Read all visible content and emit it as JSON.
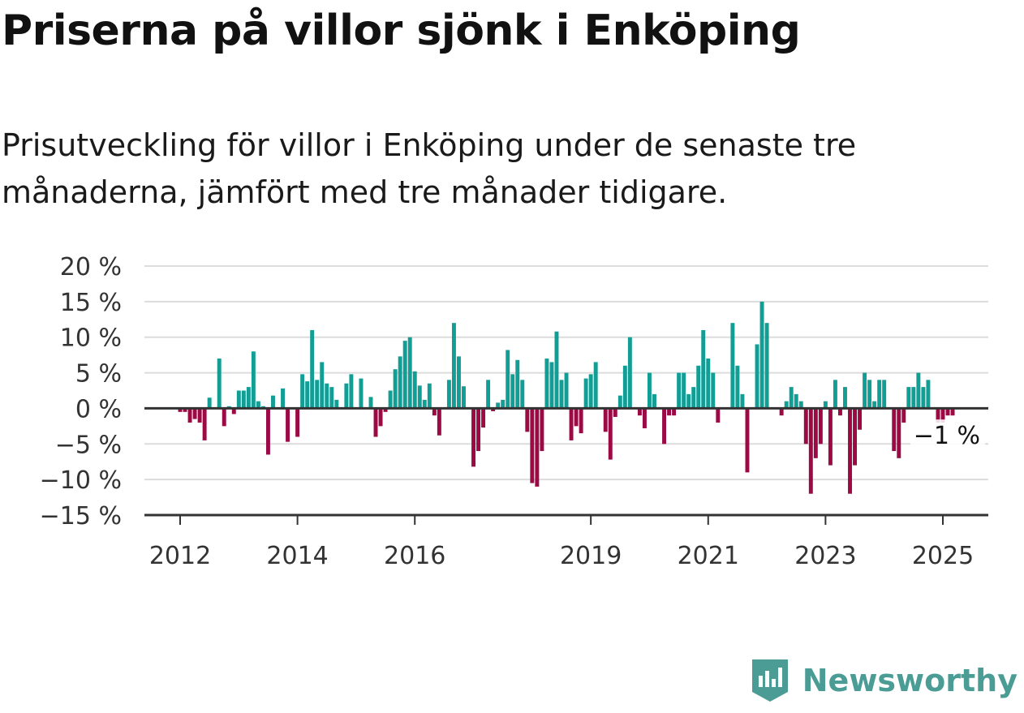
{
  "title": "Priserna på villor sjönk i Enköping",
  "subtitle": "Prisutveckling för villor i Enköping under de senaste tre månaderna, jämfört med tre månader tidigare.",
  "brand": {
    "name": "Newsworthy",
    "icon": "newsworthy-logo-icon",
    "color": "#4a9c95"
  },
  "colors": {
    "positive": "#139e95",
    "negative": "#9c0a45",
    "grid": "#dcdcdc",
    "axis": "#333333"
  },
  "chart_data": {
    "type": "bar",
    "x_start": "2012-01",
    "x_end": "2025-04",
    "ylim": [
      -15,
      20
    ],
    "yticks": [
      20,
      15,
      10,
      5,
      0,
      -5,
      -10,
      -15
    ],
    "ytick_labels": [
      "20 %",
      "15 %",
      "10 %",
      "5 %",
      "0 %",
      "−5 %",
      "−10 %",
      "−15 %"
    ],
    "xticks": [
      "2012",
      "2014",
      "2016",
      "2019",
      "2021",
      "2023",
      "2025"
    ],
    "end_label": "−1 %",
    "grid": true,
    "unit": "%",
    "values": [
      -0.5,
      -0.5,
      -2,
      -1.5,
      -2,
      -4.5,
      1.5,
      0,
      7,
      -2.5,
      0.3,
      -0.8,
      2.5,
      2.5,
      3,
      8,
      1,
      0.3,
      -6.5,
      1.8,
      0,
      2.8,
      -4.7,
      0,
      -4,
      4.8,
      3.8,
      11,
      4,
      6.5,
      3.5,
      3,
      1.2,
      0,
      3.5,
      4.8,
      0,
      4.2,
      0,
      1.6,
      -4,
      -2.5,
      -0.5,
      2.5,
      5.5,
      7.3,
      9.5,
      10,
      5.2,
      3.2,
      1.2,
      3.5,
      -1,
      -3.8,
      0,
      4,
      12,
      7.3,
      3.1,
      0,
      -8.2,
      -6,
      -2.7,
      4,
      -0.4,
      0.8,
      1.2,
      8.2,
      4.8,
      6.8,
      4,
      -3.3,
      -10.5,
      -11,
      -6,
      7,
      6.5,
      10.8,
      4,
      5,
      -4.5,
      -2.5,
      -3.5,
      4.2,
      4.8,
      6.5,
      0,
      -3.3,
      -7.2,
      -1.2,
      1.8,
      6,
      10,
      0,
      -1,
      -2.8,
      5,
      2,
      0,
      -5,
      -1,
      -1,
      5,
      5,
      2,
      3,
      6,
      11,
      7,
      5,
      -2,
      0,
      0,
      12,
      6,
      2,
      -9,
      0,
      9,
      15,
      12,
      0,
      0,
      -1,
      1,
      3,
      2,
      1,
      -5,
      -12,
      -7,
      -5,
      1,
      -8,
      4,
      -1,
      3,
      -12,
      -8,
      -3,
      5,
      4,
      1,
      4,
      4,
      0,
      -6,
      -7,
      -2,
      3,
      3,
      5,
      3,
      4,
      0,
      -2,
      -2,
      -1,
      -1,
      0
    ]
  }
}
